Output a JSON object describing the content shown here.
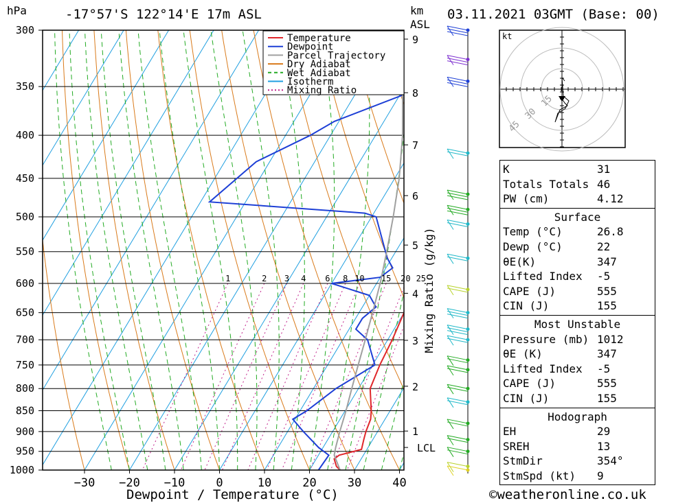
{
  "header": {
    "left_units": "hPa",
    "location": "-17°57'S 122°14'E 17m ASL",
    "km_label": "km",
    "asl_label": "ASL",
    "datetime": "03.11.2021 03GMT (Base: 00)"
  },
  "chart_data": {
    "type": "line",
    "title": "-17°57'S 122°14'E 17m ASL",
    "xlabel": "Dewpoint / Temperature (°C)",
    "ylabel": "hPa",
    "mixing_ratio_axis_label": "Mixing Ratio (g/kg)",
    "x_ticks": [
      -30,
      -20,
      -10,
      0,
      10,
      20,
      30,
      40
    ],
    "pressure_levels": [
      300,
      350,
      400,
      450,
      500,
      550,
      600,
      650,
      700,
      750,
      800,
      850,
      900,
      950,
      1000
    ],
    "km_ticks": [
      1,
      2,
      3,
      4,
      5,
      6,
      7,
      8,
      9
    ],
    "lcl_label": "LCL",
    "mixing_ratio_labels": [
      "1",
      "2",
      "3",
      "4",
      "6",
      "8",
      "10",
      "15",
      "20",
      "25"
    ],
    "legend": [
      "Temperature",
      "Dewpoint",
      "Parcel Trajectory",
      "Dry Adiabat",
      "Wet Adiabat",
      "Isotherm",
      "Mixing Ratio"
    ],
    "legend_position": "top-right",
    "colors": {
      "temperature": "#e0272b",
      "dewpoint": "#1d3fd6",
      "parcel": "#a0a0a0",
      "dry_adiabat": "#d97a1a",
      "wet_adiabat": "#22aa22",
      "isotherm": "#1f9fe0",
      "mixing_ratio": "#c0208a"
    },
    "series": [
      {
        "name": "Temperature",
        "points": [
          [
            1000,
            26.8
          ],
          [
            990,
            25.5
          ],
          [
            970,
            24.0
          ],
          [
            960,
            24.6
          ],
          [
            945,
            28.8
          ],
          [
            920,
            28.0
          ],
          [
            900,
            27.4
          ],
          [
            870,
            26.8
          ],
          [
            850,
            25.8
          ],
          [
            800,
            22.6
          ],
          [
            750,
            21.6
          ],
          [
            700,
            21.0
          ],
          [
            650,
            20.0
          ],
          [
            600,
            18.0
          ],
          [
            560,
            17.5
          ],
          [
            540,
            16.0
          ],
          [
            500,
            12.5
          ],
          [
            490,
            13.5
          ],
          [
            480,
            16.0
          ],
          [
            450,
            16.0
          ],
          [
            400,
            17.0
          ],
          [
            350,
            19.0
          ],
          [
            320,
            21.5
          ],
          [
            300,
            25.0
          ]
        ]
      },
      {
        "name": "Dewpoint",
        "points": [
          [
            1000,
            22.0
          ],
          [
            960,
            22.3
          ],
          [
            940,
            19.0
          ],
          [
            900,
            13.5
          ],
          [
            870,
            9.5
          ],
          [
            850,
            11.5
          ],
          [
            800,
            15.0
          ],
          [
            750,
            20.5
          ],
          [
            700,
            15.5
          ],
          [
            680,
            11.5
          ],
          [
            660,
            11.5
          ],
          [
            640,
            13.0
          ],
          [
            620,
            10.0
          ],
          [
            600,
            0.0
          ],
          [
            590,
            10.0
          ],
          [
            575,
            11.5
          ],
          [
            560,
            9.0
          ],
          [
            500,
            1.0
          ],
          [
            495,
            -2.0
          ],
          [
            480,
            -38.0
          ],
          [
            430,
            -33.0
          ],
          [
            400,
            -24.5
          ],
          [
            385,
            -21.0
          ],
          [
            330,
            4.0
          ],
          [
            320,
            -15.0
          ],
          [
            300,
            -16.0
          ]
        ]
      },
      {
        "name": "Parcel Trajectory",
        "points": [
          [
            1000,
            26.8
          ],
          [
            960,
            23.5
          ],
          [
            940,
            22.8
          ],
          [
            900,
            21.6
          ],
          [
            850,
            20.2
          ],
          [
            800,
            18.5
          ],
          [
            750,
            16.8
          ],
          [
            700,
            15.0
          ],
          [
            650,
            13.0
          ],
          [
            600,
            10.8
          ],
          [
            550,
            8.0
          ],
          [
            500,
            4.8
          ],
          [
            450,
            1.0
          ],
          [
            400,
            -4.0
          ],
          [
            350,
            -10.5
          ],
          [
            300,
            -19.5
          ]
        ]
      }
    ],
    "hodograph": {
      "unit_label": "kt",
      "ring_labels": [
        "15",
        "30",
        "45"
      ]
    }
  },
  "indices": {
    "general": [
      {
        "label": "K",
        "value": "31"
      },
      {
        "label": "Totals Totals",
        "value": "46"
      },
      {
        "label": "PW (cm)",
        "value": "4.12"
      }
    ],
    "surface": {
      "title": "Surface",
      "rows": [
        {
          "label": "Temp (°C)",
          "value": "26.8"
        },
        {
          "label": "Dewp (°C)",
          "value": "22"
        },
        {
          "label": "θE(K)",
          "value": "347"
        },
        {
          "label": "Lifted Index",
          "value": "-5"
        },
        {
          "label": "CAPE (J)",
          "value": "555"
        },
        {
          "label": "CIN (J)",
          "value": "155"
        }
      ]
    },
    "most_unstable": {
      "title": "Most Unstable",
      "rows": [
        {
          "label": "Pressure (mb)",
          "value": "1012"
        },
        {
          "label": "θE (K)",
          "value": "347"
        },
        {
          "label": "Lifted Index",
          "value": "-5"
        },
        {
          "label": "CAPE (J)",
          "value": "555"
        },
        {
          "label": "CIN (J)",
          "value": "155"
        }
      ]
    },
    "hodograph": {
      "title": "Hodograph",
      "rows": [
        {
          "label": "EH",
          "value": "29"
        },
        {
          "label": "SREH",
          "value": "13"
        },
        {
          "label": "StmDir",
          "value": "354°"
        },
        {
          "label": "StmSpd (kt)",
          "value": "9"
        }
      ]
    }
  },
  "footer": {
    "copyright": "©weatheronline.co.uk"
  }
}
